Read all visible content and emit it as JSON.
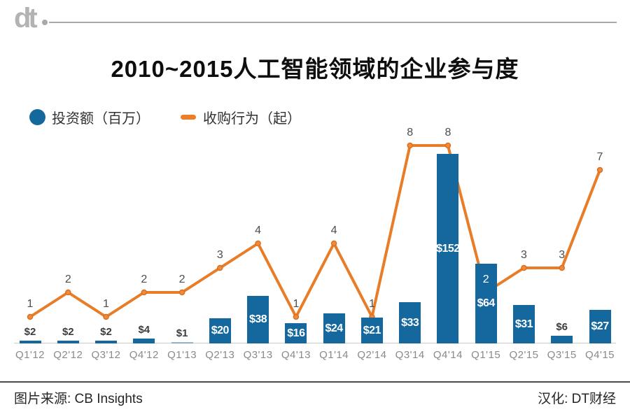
{
  "header": {
    "logo_text": "dt"
  },
  "chart_data": {
    "type": "bar+line",
    "title": "2010~2015人工智能领域的企业参与度",
    "categories": [
      "Q1'12",
      "Q2'12",
      "Q3'12",
      "Q4'12",
      "Q1'13",
      "Q2'13",
      "Q3'13",
      "Q4'13",
      "Q1'14",
      "Q2'14",
      "Q3'14",
      "Q4'14",
      "Q1'15",
      "Q2'15",
      "Q3'15",
      "Q4'15"
    ],
    "series": [
      {
        "name": "投资额（百万）",
        "type": "bar",
        "values": [
          2,
          2,
          2,
          4,
          1,
          20,
          38,
          16,
          24,
          21,
          33,
          152,
          64,
          31,
          6,
          27
        ],
        "labels": [
          "$2",
          "$2",
          "$2",
          "$4",
          "$1",
          "$20",
          "$38",
          "$16",
          "$24",
          "$21",
          "$33",
          "$152",
          "$64",
          "$31",
          "$6",
          "$27"
        ]
      },
      {
        "name": "收购行为（起）",
        "type": "line",
        "values": [
          1,
          2,
          1,
          2,
          2,
          3,
          4,
          1,
          4,
          1,
          8,
          8,
          2,
          3,
          3,
          7
        ]
      }
    ],
    "bar_color": "#15689e",
    "line_color": "#e87c27",
    "marker_fill": "#ee8b3e",
    "marker_stroke": "#dd6f1e",
    "grid": false,
    "legend_position": "top-left",
    "ylim_bar": [
      0,
      160
    ],
    "ylim_line": [
      0,
      9
    ]
  },
  "legend": {
    "investment": "投资额（百万）",
    "acquisition": "收购行为（起）"
  },
  "footer": {
    "source": "图片来源: CB Insights",
    "translation": "汉化: DT财经"
  }
}
